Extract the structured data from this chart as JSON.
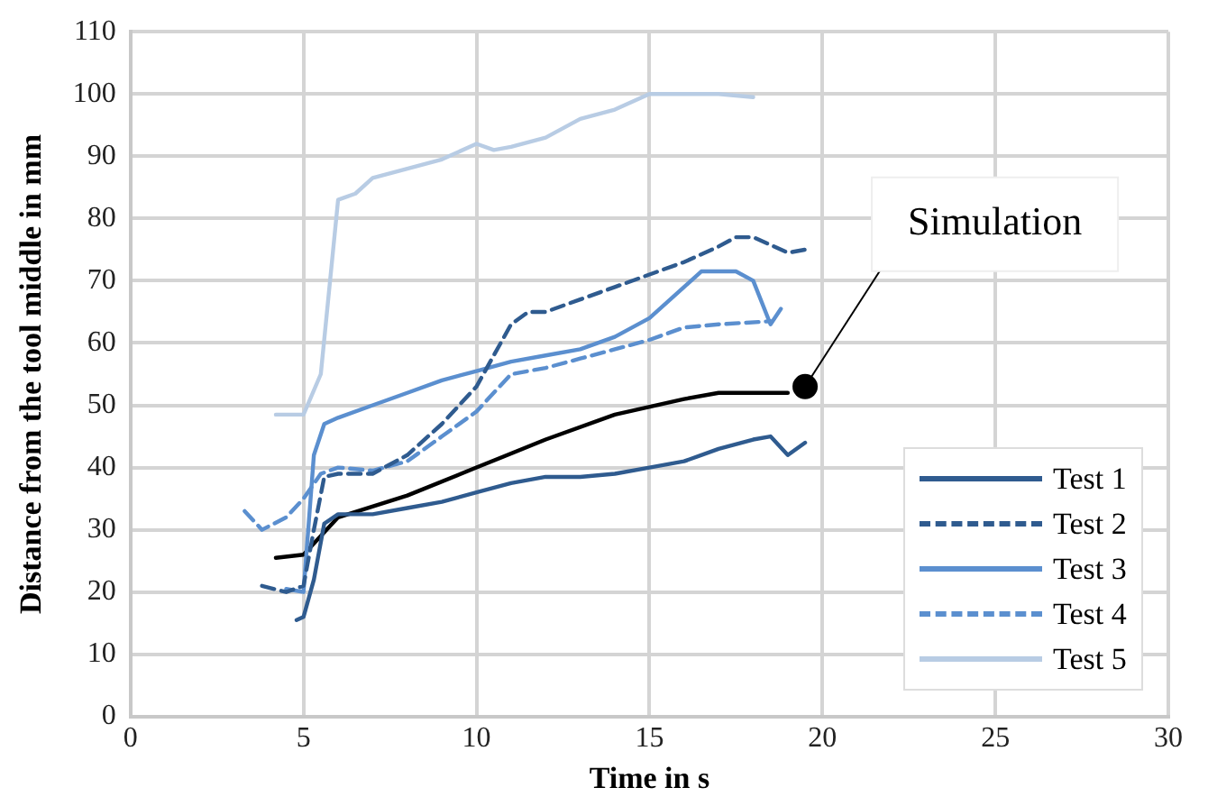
{
  "chart_data": {
    "type": "line",
    "xlabel": "Time in s",
    "ylabel": "Distance from the tool middle in mm",
    "xlim": [
      0,
      30
    ],
    "xticks": [
      0,
      5,
      10,
      15,
      20,
      25,
      30
    ],
    "ylim": [
      0,
      110
    ],
    "yticks": [
      0,
      10,
      20,
      30,
      40,
      50,
      60,
      70,
      80,
      90,
      100,
      110
    ],
    "grid": true,
    "legend": "bottom right",
    "marker": "none",
    "annotations": [
      {
        "text": "Simulation",
        "x": 19.5,
        "y": 53
      }
    ],
    "series": [
      {
        "name": "Test 1",
        "color": "#2f5b8f",
        "line_style": "solid",
        "x": [
          4.8,
          5.0,
          5.3,
          5.6,
          6,
          7,
          8,
          9,
          10,
          11,
          12,
          13,
          14,
          15,
          16,
          17,
          18,
          18.5,
          19,
          19.5
        ],
        "values": [
          15.5,
          16,
          22,
          31,
          32.5,
          32.5,
          33.5,
          34.5,
          36,
          37.5,
          38.5,
          38.5,
          39,
          40,
          41,
          43,
          44.5,
          45,
          42,
          44
        ]
      },
      {
        "name": "Test 2",
        "color": "#2f5b8f",
        "line_style": "dashed",
        "x": [
          3.8,
          4.5,
          5,
          5.3,
          5.6,
          6,
          7,
          8,
          9,
          10,
          11,
          11.5,
          12,
          13,
          14,
          15,
          16,
          17,
          17.5,
          18,
          19,
          19.5
        ],
        "values": [
          21,
          20,
          21,
          30,
          38.5,
          39,
          39,
          42,
          47,
          53,
          63,
          65,
          65,
          67,
          69,
          71,
          73,
          75.5,
          77,
          77,
          74.5,
          75
        ]
      },
      {
        "name": "Test 3",
        "color": "#5b8fcf",
        "line_style": "solid",
        "x": [
          4.5,
          5,
          5.3,
          5.6,
          6,
          7,
          8,
          9,
          10,
          11,
          12,
          13,
          14,
          15,
          16,
          16.5,
          17.5,
          18,
          18.5,
          18.8
        ],
        "values": [
          20.5,
          20,
          42,
          47,
          48,
          50,
          52,
          54,
          55.5,
          57,
          58,
          59,
          61,
          64,
          69,
          71.5,
          71.5,
          70,
          63,
          65.5
        ]
      },
      {
        "name": "Test 4",
        "color": "#5b8fcf",
        "line_style": "dashed",
        "x": [
          3.3,
          3.8,
          4.5,
          5,
          5.5,
          6,
          7,
          8,
          9,
          10,
          11,
          12,
          13,
          14,
          15,
          16,
          17,
          18.5
        ],
        "values": [
          33,
          30,
          32,
          35,
          39,
          40,
          39.5,
          41,
          45,
          49,
          55,
          56,
          57.5,
          59,
          60.5,
          62.5,
          63,
          63.5
        ]
      },
      {
        "name": "Test 5",
        "color": "#b8cce4",
        "line_style": "solid",
        "x": [
          4.2,
          5,
          5.5,
          6,
          6.5,
          7,
          8,
          9,
          10,
          10.5,
          11,
          12,
          13,
          14,
          15,
          16,
          17,
          18
        ],
        "values": [
          48.5,
          48.5,
          55,
          83,
          84,
          86.5,
          88,
          89.5,
          92,
          91,
          91.5,
          93,
          96,
          97.5,
          100,
          100,
          100,
          99.5
        ]
      },
      {
        "color": "#000000",
        "line_style": "solid",
        "x": [
          4.2,
          5,
          5.5,
          6,
          8,
          10,
          12,
          14,
          16,
          17,
          19
        ],
        "values": [
          25.5,
          26,
          29,
          32,
          35.5,
          40,
          44.5,
          48.5,
          51,
          52,
          52
        ]
      }
    ]
  }
}
